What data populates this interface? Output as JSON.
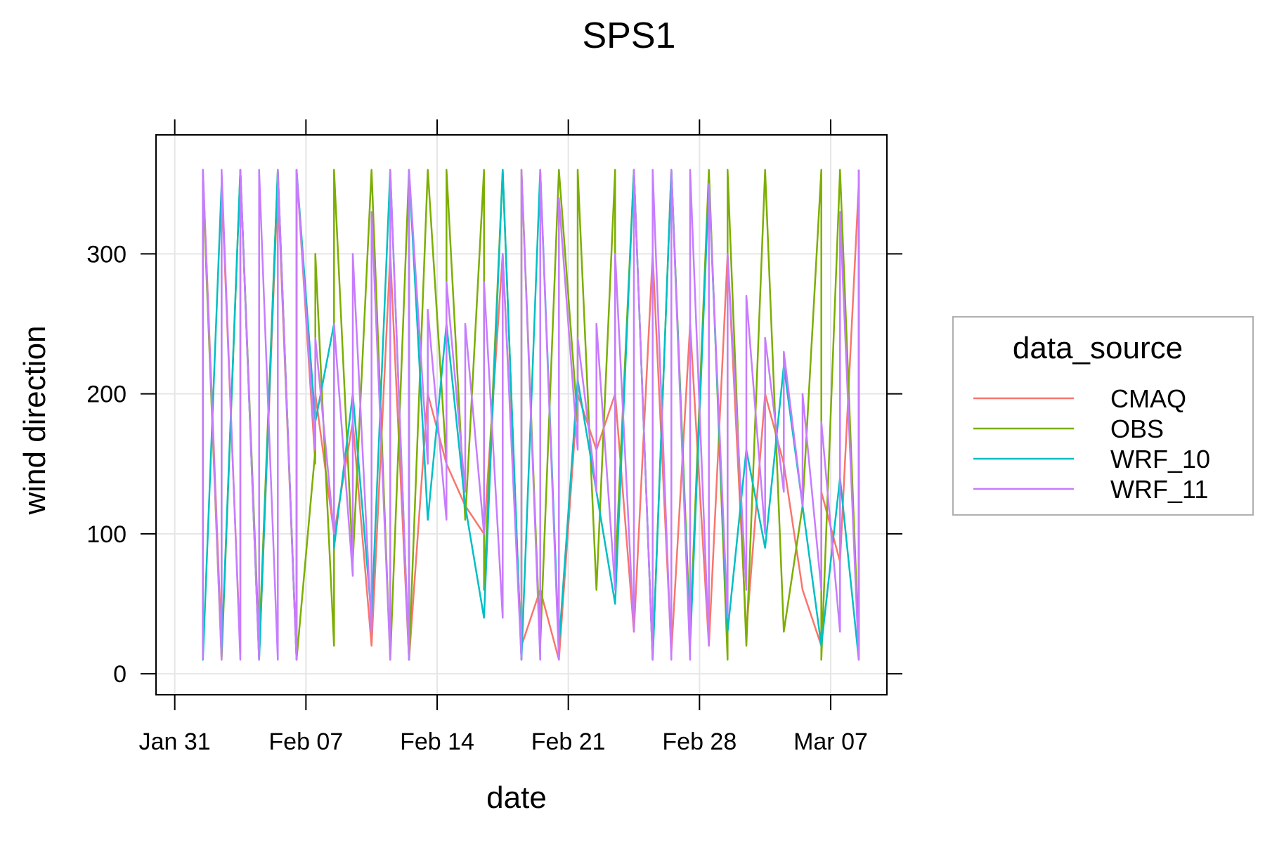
{
  "chart_data": {
    "type": "line",
    "title": "SPS1",
    "xlabel": "date",
    "ylabel": "wind direction",
    "x_range": [
      "2022-01-30",
      "2022-03-10"
    ],
    "x_ticks": [
      {
        "date": "2022-01-31",
        "label": "Jan 31"
      },
      {
        "date": "2022-02-07",
        "label": "Feb 07"
      },
      {
        "date": "2022-02-14",
        "label": "Feb 14"
      },
      {
        "date": "2022-02-21",
        "label": "Feb 21"
      },
      {
        "date": "2022-02-28",
        "label": "Feb 28"
      },
      {
        "date": "2022-03-07",
        "label": "Mar 07"
      }
    ],
    "ylim": [
      -15,
      385
    ],
    "y_ticks": [
      0,
      100,
      200,
      300
    ],
    "grid": true,
    "legend": {
      "title": "data_source",
      "placement": "right"
    },
    "series": [
      {
        "name": "CMAQ",
        "color": "#F8766D",
        "points": [
          [
            "2022-02-01",
            10
          ],
          [
            "2022-02-01",
            360
          ],
          [
            "2022-02-02",
            20
          ],
          [
            "2022-02-02",
            350
          ],
          [
            "2022-02-03",
            15
          ],
          [
            "2022-02-03",
            360
          ],
          [
            "2022-02-04",
            10
          ],
          [
            "2022-02-05",
            350
          ],
          [
            "2022-02-06",
            10
          ],
          [
            "2022-02-06",
            360
          ],
          [
            "2022-02-07",
            150
          ],
          [
            "2022-02-07",
            200
          ],
          [
            "2022-02-08",
            100
          ],
          [
            "2022-02-09",
            180
          ],
          [
            "2022-02-10",
            20
          ],
          [
            "2022-02-11",
            300
          ],
          [
            "2022-02-12",
            10
          ],
          [
            "2022-02-13",
            200
          ],
          [
            "2022-02-14",
            150
          ],
          [
            "2022-02-15",
            120
          ],
          [
            "2022-02-16",
            100
          ],
          [
            "2022-02-17",
            300
          ],
          [
            "2022-02-18",
            20
          ],
          [
            "2022-02-19",
            60
          ],
          [
            "2022-02-20",
            10
          ],
          [
            "2022-02-21",
            200
          ],
          [
            "2022-02-22",
            160
          ],
          [
            "2022-02-23",
            200
          ],
          [
            "2022-02-24",
            30
          ],
          [
            "2022-02-25",
            300
          ],
          [
            "2022-02-26",
            15
          ],
          [
            "2022-02-27",
            250
          ],
          [
            "2022-02-28",
            20
          ],
          [
            "2022-03-01",
            300
          ],
          [
            "2022-03-02",
            30
          ],
          [
            "2022-03-03",
            200
          ],
          [
            "2022-03-04",
            150
          ],
          [
            "2022-03-05",
            60
          ],
          [
            "2022-03-06",
            20
          ],
          [
            "2022-03-06",
            130
          ],
          [
            "2022-03-07",
            80
          ],
          [
            "2022-03-08",
            350
          ],
          [
            "2022-03-08",
            10
          ]
        ]
      },
      {
        "name": "OBS",
        "color": "#7CAE00",
        "points": [
          [
            "2022-02-01",
            10
          ],
          [
            "2022-02-01",
            350
          ],
          [
            "2022-02-02",
            10
          ],
          [
            "2022-02-03",
            360
          ],
          [
            "2022-02-04",
            20
          ],
          [
            "2022-02-05",
            360
          ],
          [
            "2022-02-06",
            10
          ],
          [
            "2022-02-07",
            160
          ],
          [
            "2022-02-07",
            300
          ],
          [
            "2022-02-08",
            20
          ],
          [
            "2022-02-08",
            360
          ],
          [
            "2022-02-09",
            80
          ],
          [
            "2022-02-10",
            360
          ],
          [
            "2022-02-11",
            10
          ],
          [
            "2022-02-12",
            360
          ],
          [
            "2022-02-12",
            10
          ],
          [
            "2022-02-13",
            360
          ],
          [
            "2022-02-14",
            150
          ],
          [
            "2022-02-14",
            360
          ],
          [
            "2022-02-15",
            110
          ],
          [
            "2022-02-16",
            360
          ],
          [
            "2022-02-16",
            60
          ],
          [
            "2022-02-17",
            360
          ],
          [
            "2022-02-18",
            10
          ],
          [
            "2022-02-18",
            360
          ],
          [
            "2022-02-19",
            20
          ],
          [
            "2022-02-20",
            360
          ],
          [
            "2022-02-21",
            180
          ],
          [
            "2022-02-21",
            360
          ],
          [
            "2022-02-22",
            60
          ],
          [
            "2022-02-23",
            360
          ],
          [
            "2022-02-23",
            70
          ],
          [
            "2022-02-24",
            360
          ],
          [
            "2022-02-25",
            10
          ],
          [
            "2022-02-26",
            360
          ],
          [
            "2022-02-27",
            30
          ],
          [
            "2022-02-28",
            360
          ],
          [
            "2022-03-01",
            10
          ],
          [
            "2022-03-01",
            360
          ],
          [
            "2022-03-02",
            20
          ],
          [
            "2022-03-03",
            360
          ],
          [
            "2022-03-04",
            30
          ],
          [
            "2022-03-05",
            120
          ],
          [
            "2022-03-06",
            360
          ],
          [
            "2022-03-06",
            10
          ],
          [
            "2022-03-07",
            360
          ],
          [
            "2022-03-08",
            20
          ],
          [
            "2022-03-08",
            360
          ]
        ]
      },
      {
        "name": "WRF_10",
        "color": "#00BFC4",
        "points": [
          [
            "2022-02-01",
            360
          ],
          [
            "2022-02-01",
            10
          ],
          [
            "2022-02-02",
            350
          ],
          [
            "2022-02-02",
            15
          ],
          [
            "2022-02-03",
            360
          ],
          [
            "2022-02-04",
            10
          ],
          [
            "2022-02-05",
            360
          ],
          [
            "2022-02-06",
            10
          ],
          [
            "2022-02-06",
            360
          ],
          [
            "2022-02-07",
            180
          ],
          [
            "2022-02-08",
            250
          ],
          [
            "2022-02-08",
            90
          ],
          [
            "2022-02-09",
            200
          ],
          [
            "2022-02-10",
            40
          ],
          [
            "2022-02-11",
            360
          ],
          [
            "2022-02-12",
            10
          ],
          [
            "2022-02-12",
            360
          ],
          [
            "2022-02-13",
            110
          ],
          [
            "2022-02-14",
            250
          ],
          [
            "2022-02-15",
            120
          ],
          [
            "2022-02-16",
            40
          ],
          [
            "2022-02-17",
            360
          ],
          [
            "2022-02-18",
            10
          ],
          [
            "2022-02-19",
            360
          ],
          [
            "2022-02-20",
            20
          ],
          [
            "2022-02-21",
            210
          ],
          [
            "2022-02-22",
            130
          ],
          [
            "2022-02-23",
            50
          ],
          [
            "2022-02-24",
            360
          ],
          [
            "2022-02-25",
            10
          ],
          [
            "2022-02-26",
            360
          ],
          [
            "2022-02-27",
            20
          ],
          [
            "2022-02-28",
            350
          ],
          [
            "2022-03-01",
            30
          ],
          [
            "2022-03-02",
            160
          ],
          [
            "2022-03-03",
            90
          ],
          [
            "2022-03-04",
            220
          ],
          [
            "2022-03-05",
            120
          ],
          [
            "2022-03-06",
            20
          ],
          [
            "2022-03-07",
            140
          ],
          [
            "2022-03-08",
            10
          ],
          [
            "2022-03-08",
            360
          ]
        ]
      },
      {
        "name": "WRF_11",
        "color": "#C77CFF",
        "points": [
          [
            "2022-02-01",
            10
          ],
          [
            "2022-02-01",
            360
          ],
          [
            "2022-02-02",
            10
          ],
          [
            "2022-02-02",
            360
          ],
          [
            "2022-02-03",
            10
          ],
          [
            "2022-02-03",
            360
          ],
          [
            "2022-02-04",
            10
          ],
          [
            "2022-02-04",
            360
          ],
          [
            "2022-02-05",
            10
          ],
          [
            "2022-02-05",
            360
          ],
          [
            "2022-02-06",
            10
          ],
          [
            "2022-02-06",
            360
          ],
          [
            "2022-02-07",
            160
          ],
          [
            "2022-02-07",
            240
          ],
          [
            "2022-02-08",
            100
          ],
          [
            "2022-02-08",
            250
          ],
          [
            "2022-02-09",
            70
          ],
          [
            "2022-02-09",
            300
          ],
          [
            "2022-02-10",
            30
          ],
          [
            "2022-02-10",
            330
          ],
          [
            "2022-02-11",
            10
          ],
          [
            "2022-02-11",
            360
          ],
          [
            "2022-02-12",
            10
          ],
          [
            "2022-02-12",
            360
          ],
          [
            "2022-02-13",
            150
          ],
          [
            "2022-02-13",
            260
          ],
          [
            "2022-02-14",
            110
          ],
          [
            "2022-02-14",
            280
          ],
          [
            "2022-02-15",
            130
          ],
          [
            "2022-02-15",
            250
          ],
          [
            "2022-02-16",
            100
          ],
          [
            "2022-02-16",
            280
          ],
          [
            "2022-02-17",
            40
          ],
          [
            "2022-02-17",
            300
          ],
          [
            "2022-02-18",
            10
          ],
          [
            "2022-02-18",
            360
          ],
          [
            "2022-02-19",
            10
          ],
          [
            "2022-02-19",
            360
          ],
          [
            "2022-02-20",
            10
          ],
          [
            "2022-02-20",
            340
          ],
          [
            "2022-02-21",
            160
          ],
          [
            "2022-02-21",
            240
          ],
          [
            "2022-02-22",
            130
          ],
          [
            "2022-02-22",
            250
          ],
          [
            "2022-02-23",
            60
          ],
          [
            "2022-02-23",
            300
          ],
          [
            "2022-02-24",
            30
          ],
          [
            "2022-02-24",
            360
          ],
          [
            "2022-02-25",
            10
          ],
          [
            "2022-02-25",
            360
          ],
          [
            "2022-02-26",
            10
          ],
          [
            "2022-02-26",
            360
          ],
          [
            "2022-02-27",
            10
          ],
          [
            "2022-02-27",
            360
          ],
          [
            "2022-02-28",
            20
          ],
          [
            "2022-02-28",
            350
          ],
          [
            "2022-03-01",
            40
          ],
          [
            "2022-03-01",
            300
          ],
          [
            "2022-03-02",
            60
          ],
          [
            "2022-03-02",
            270
          ],
          [
            "2022-03-03",
            100
          ],
          [
            "2022-03-03",
            240
          ],
          [
            "2022-03-04",
            130
          ],
          [
            "2022-03-04",
            230
          ],
          [
            "2022-03-05",
            120
          ],
          [
            "2022-03-05",
            200
          ],
          [
            "2022-03-06",
            60
          ],
          [
            "2022-03-06",
            180
          ],
          [
            "2022-03-07",
            30
          ],
          [
            "2022-03-07",
            330
          ],
          [
            "2022-03-08",
            10
          ],
          [
            "2022-03-08",
            360
          ]
        ]
      }
    ]
  }
}
